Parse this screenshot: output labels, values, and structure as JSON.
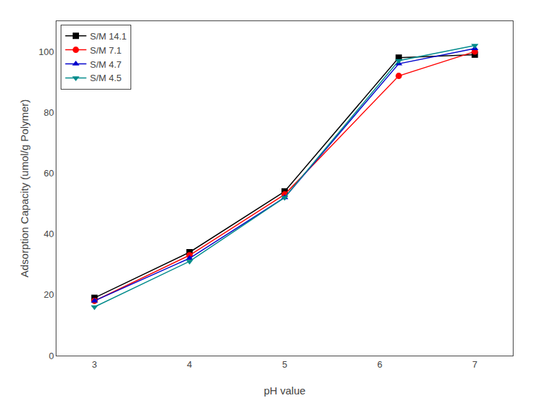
{
  "chart_data": {
    "type": "line",
    "x": [
      3,
      4,
      5,
      6.2,
      7
    ],
    "series": [
      {
        "name": "S/M 14.1",
        "color": "#000000",
        "marker": "square",
        "values": [
          19,
          34,
          54,
          98,
          99
        ]
      },
      {
        "name": "S/M 7.1",
        "color": "#ff0000",
        "marker": "circle",
        "values": [
          18,
          33,
          53,
          92,
          100
        ]
      },
      {
        "name": "S/M 4.7",
        "color": "#0000cc",
        "marker": "triangle-up",
        "values": [
          18,
          32,
          52,
          96,
          101
        ]
      },
      {
        "name": "S/M 4.5",
        "color": "#008b8b",
        "marker": "triangle-down",
        "values": [
          16,
          31,
          52,
          97,
          102
        ]
      }
    ],
    "xlabel": "pH value",
    "ylabel": "Adsorption Capacity (umol/g Polymer)",
    "xlim": [
      2.6,
      7.4
    ],
    "ylim": [
      0,
      110
    ],
    "xticks": [
      3,
      4,
      5,
      6,
      7
    ],
    "yticks": [
      0,
      20,
      40,
      60,
      80,
      100
    ],
    "legend": "upper left",
    "grid": false
  }
}
